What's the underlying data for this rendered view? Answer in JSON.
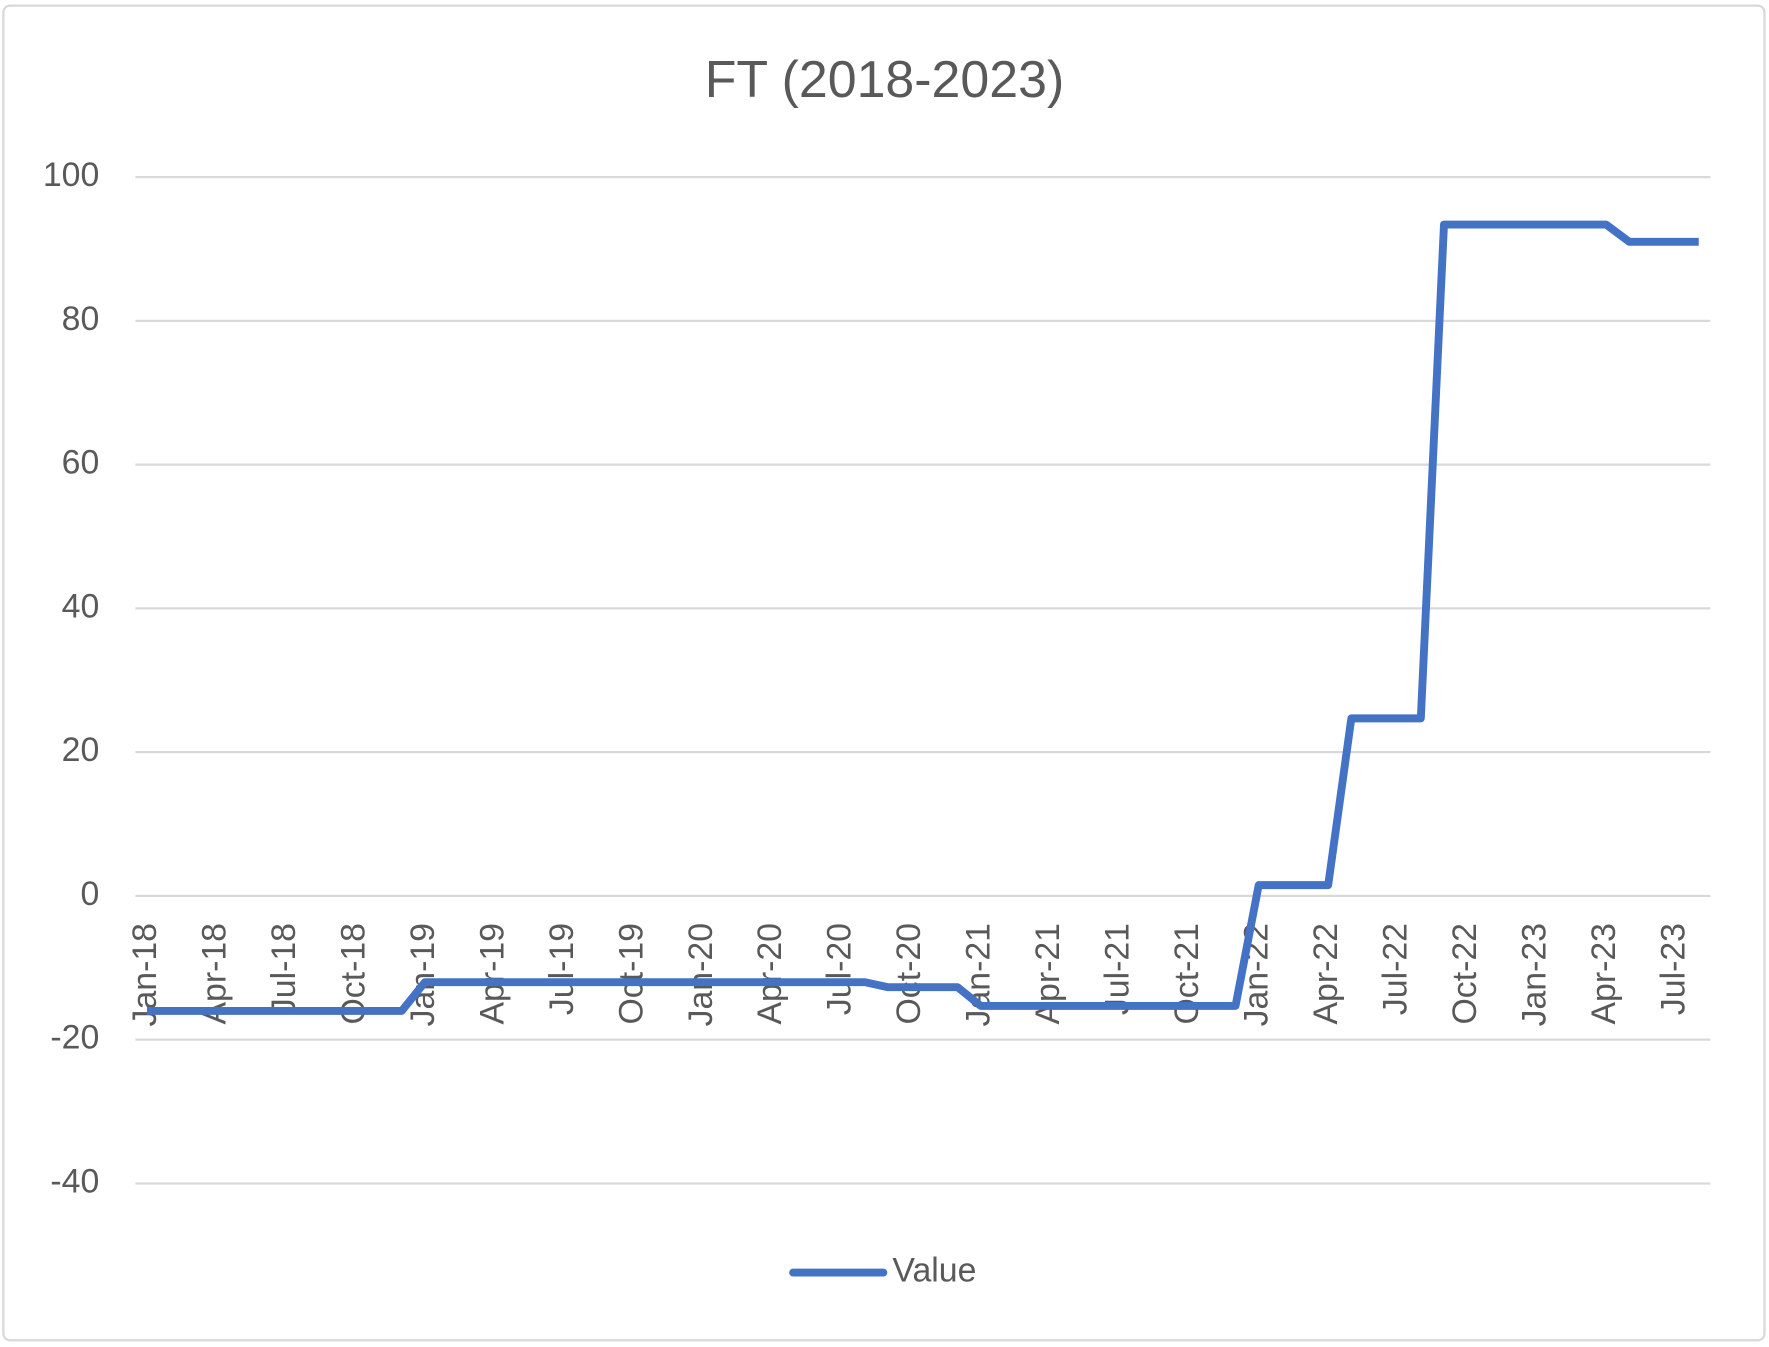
{
  "chart_data": {
    "type": "line",
    "title": "FT (2018-2023)",
    "categories": [
      "Jan-18",
      null,
      null,
      "Apr-18",
      null,
      null,
      "Jul-18",
      null,
      null,
      "Oct-18",
      null,
      null,
      "Jan-19",
      null,
      null,
      "Apr-19",
      null,
      null,
      "Jul-19",
      null,
      null,
      "Oct-19",
      null,
      null,
      "Jan-20",
      null,
      null,
      "Apr-20",
      null,
      null,
      "Jul-20",
      null,
      null,
      "Oct-20",
      null,
      null,
      "Jan-21",
      null,
      null,
      "Apr-21",
      null,
      null,
      "Jul-21",
      null,
      null,
      "Oct-21",
      null,
      null,
      "Jan-22",
      null,
      null,
      "Apr-22",
      null,
      null,
      "Jul-22",
      null,
      null,
      "Oct-22",
      null,
      null,
      "Jan-23",
      null,
      null,
      "Apr-23",
      null,
      null,
      "Jul-23",
      null
    ],
    "series": [
      {
        "name": "Value",
        "color": "#4472c4",
        "values": [
          -16,
          -16,
          -16,
          -16,
          -16,
          -16,
          -16,
          -16,
          -16,
          -16,
          -16,
          -16,
          -12,
          -12,
          -12,
          -12,
          -12,
          -12,
          -12,
          -12,
          -12,
          -12,
          -12,
          -12,
          -12,
          -12,
          -12,
          -12,
          -12,
          -12,
          -12,
          -12,
          -12.7,
          -12.7,
          -12.7,
          -12.7,
          -15.3,
          -15.3,
          -15.3,
          -15.3,
          -15.3,
          -15.3,
          -15.3,
          -15.3,
          -15.3,
          -15.3,
          -15.3,
          -15.3,
          1.5,
          1.5,
          1.5,
          1.5,
          24.7,
          24.7,
          24.7,
          24.7,
          93.4,
          93.4,
          93.4,
          93.4,
          93.4,
          93.4,
          93.4,
          93.4,
          91,
          91,
          91,
          91
        ]
      }
    ],
    "ylim": [
      -40,
      100
    ],
    "yticks": [
      -40,
      -20,
      0,
      20,
      40,
      60,
      80,
      100
    ],
    "grid": true,
    "legend": "bottom"
  }
}
